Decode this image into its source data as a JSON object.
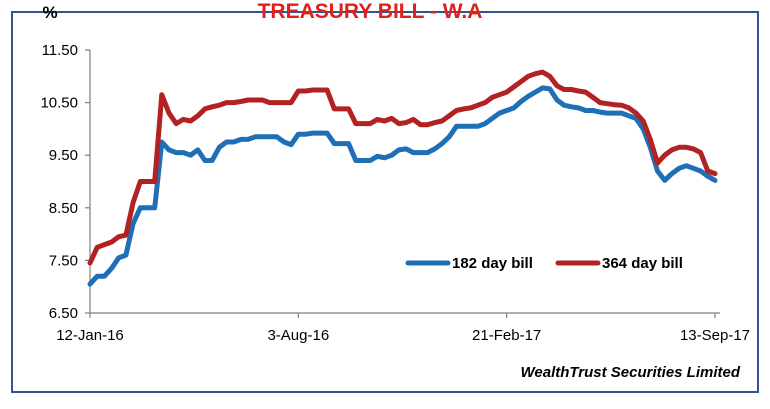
{
  "chart_data": {
    "type": "line",
    "title": "TREASURY BILL - W.A",
    "ylabel": "%",
    "source": "WealthTrust Securities Limited",
    "ylim": [
      6.5,
      11.5
    ],
    "yticks": [
      "11.50",
      "10.50",
      "9.50",
      "8.50",
      "7.50",
      "6.50"
    ],
    "yticks_values": [
      11.5,
      10.5,
      9.5,
      8.5,
      7.5,
      6.5
    ],
    "xtick_labels": [
      "12-Jan-16",
      "3-Aug-16",
      "21-Feb-17",
      "13-Sep-17"
    ],
    "xtick_indices": [
      0,
      29,
      58,
      87
    ],
    "grid": false,
    "legend_position": "lower-right",
    "colors": {
      "182 day bill": "#1f6fb7",
      "364 day bill": "#b22222",
      "title": "#e0201b",
      "frame": "#2f5597"
    },
    "series": [
      {
        "name": "182 day bill",
        "values": [
          7.05,
          7.2,
          7.2,
          7.35,
          7.55,
          7.6,
          8.2,
          8.5,
          8.5,
          8.5,
          9.75,
          9.6,
          9.55,
          9.55,
          9.5,
          9.6,
          9.4,
          9.4,
          9.65,
          9.75,
          9.75,
          9.8,
          9.8,
          9.85,
          9.85,
          9.85,
          9.85,
          9.75,
          9.7,
          9.9,
          9.9,
          9.92,
          9.92,
          9.92,
          9.72,
          9.72,
          9.72,
          9.4,
          9.4,
          9.4,
          9.48,
          9.45,
          9.5,
          9.6,
          9.62,
          9.55,
          9.55,
          9.55,
          9.62,
          9.72,
          9.85,
          10.05,
          10.05,
          10.05,
          10.05,
          10.1,
          10.2,
          10.3,
          10.35,
          10.4,
          10.52,
          10.62,
          10.7,
          10.78,
          10.76,
          10.55,
          10.45,
          10.42,
          10.4,
          10.35,
          10.35,
          10.32,
          10.3,
          10.3,
          10.3,
          10.25,
          10.2,
          10.0,
          9.65,
          9.2,
          9.02,
          9.15,
          9.25,
          9.3,
          9.25,
          9.2,
          9.1,
          9.02
        ]
      },
      {
        "name": "364 day bill",
        "values": [
          7.45,
          7.75,
          7.8,
          7.85,
          7.95,
          7.98,
          8.6,
          9.0,
          9.0,
          9.0,
          10.65,
          10.3,
          10.1,
          10.18,
          10.15,
          10.25,
          10.38,
          10.42,
          10.45,
          10.5,
          10.5,
          10.52,
          10.55,
          10.55,
          10.55,
          10.5,
          10.5,
          10.5,
          10.5,
          10.72,
          10.72,
          10.74,
          10.74,
          10.74,
          10.38,
          10.38,
          10.38,
          10.1,
          10.1,
          10.1,
          10.18,
          10.15,
          10.2,
          10.1,
          10.12,
          10.18,
          10.08,
          10.08,
          10.12,
          10.15,
          10.25,
          10.35,
          10.38,
          10.4,
          10.45,
          10.5,
          10.6,
          10.65,
          10.7,
          10.8,
          10.9,
          11.0,
          11.05,
          11.08,
          11.0,
          10.82,
          10.75,
          10.75,
          10.72,
          10.7,
          10.6,
          10.5,
          10.48,
          10.46,
          10.45,
          10.4,
          10.3,
          10.15,
          9.8,
          9.35,
          9.5,
          9.6,
          9.65,
          9.65,
          9.62,
          9.55,
          9.2,
          9.15
        ]
      }
    ]
  }
}
